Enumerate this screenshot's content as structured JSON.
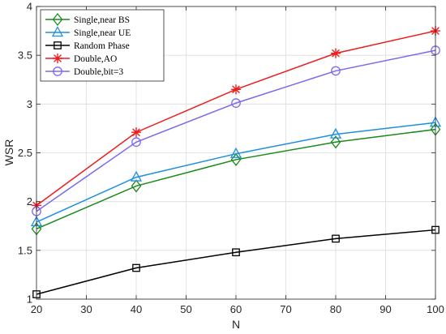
{
  "chart_data": {
    "type": "line",
    "xlabel": "N",
    "ylabel": "WSR",
    "xlim": [
      20,
      100
    ],
    "ylim": [
      1,
      4
    ],
    "xticks": [
      20,
      30,
      40,
      50,
      60,
      70,
      80,
      90,
      100
    ],
    "yticks": [
      1,
      1.5,
      2,
      2.5,
      3,
      3.5,
      4
    ],
    "ytick_labels": [
      "1",
      "1.5",
      "2",
      "2.5",
      "3",
      "3.5",
      "4"
    ],
    "grid": true,
    "legend_position": "top-left",
    "x": [
      20,
      40,
      60,
      80,
      100
    ],
    "series": [
      {
        "name": "Single,near BS",
        "color": "#1a8a1a",
        "marker": "diamond",
        "values": [
          1.72,
          2.16,
          2.43,
          2.61,
          2.74
        ]
      },
      {
        "name": "Single,near UE",
        "color": "#1e8fe0",
        "marker": "triangle",
        "values": [
          1.79,
          2.25,
          2.49,
          2.69,
          2.81
        ]
      },
      {
        "name": "Random Phase",
        "color": "#000000",
        "marker": "square",
        "values": [
          1.05,
          1.32,
          1.48,
          1.62,
          1.71
        ]
      },
      {
        "name": "Double,AO",
        "color": "#ee1c1c",
        "marker": "asterisk",
        "values": [
          1.96,
          2.71,
          3.15,
          3.52,
          3.75
        ]
      },
      {
        "name": "Double,bit=3",
        "color": "#7b68ee",
        "marker": "circle",
        "values": [
          1.9,
          2.61,
          3.01,
          3.34,
          3.55
        ]
      }
    ]
  }
}
